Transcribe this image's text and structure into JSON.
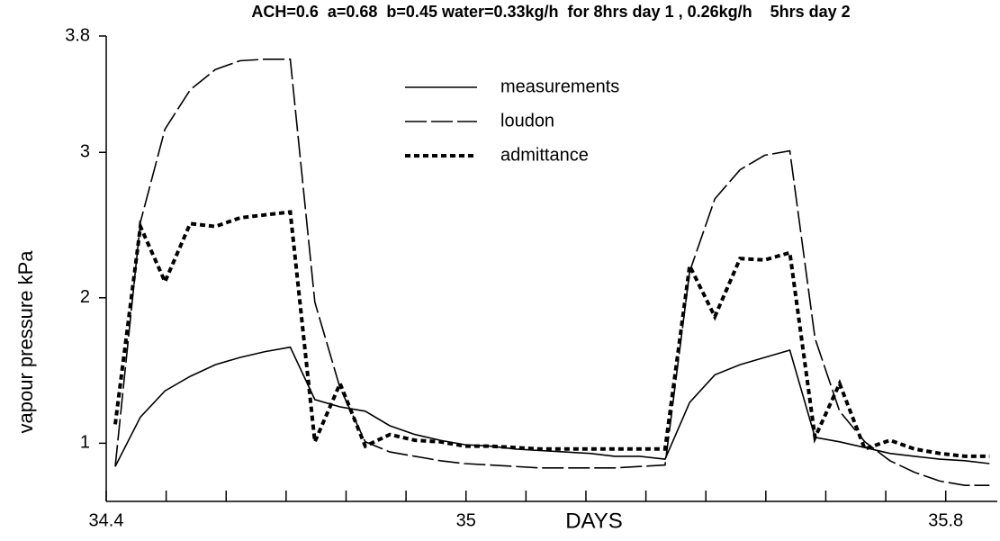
{
  "chart_data": {
    "type": "line",
    "title": "ACH=0.6  a=0.68  b=0.45 water=0.33kg/h  for 8hrs day 1 , 0.26kg/h    5hrs day 2",
    "xlabel": "DAYS",
    "ylabel": "vapour pressure kPa",
    "xlim": [
      34.4,
      35.886
    ],
    "ylim": [
      0.6,
      3.8
    ],
    "xticks": [
      34.4,
      35,
      35.8
    ],
    "xminorticks": [
      34.5,
      34.6,
      34.7,
      34.8,
      34.9,
      35.1,
      35.2,
      35.3,
      35.4,
      35.5,
      35.6,
      35.7
    ],
    "yticks": [
      1,
      2,
      3,
      3.8
    ],
    "grid": false,
    "legend": "top-center",
    "x": [
      34.415,
      34.457,
      34.498,
      34.54,
      34.582,
      34.623,
      34.665,
      34.707,
      34.748,
      34.79,
      34.832,
      34.873,
      34.915,
      34.957,
      34.998,
      35.04,
      35.082,
      35.123,
      35.165,
      35.207,
      35.248,
      35.29,
      35.332,
      35.373,
      35.415,
      35.457,
      35.498,
      35.54,
      35.582,
      35.623,
      35.665,
      35.707,
      35.748,
      35.79,
      35.832,
      35.873
    ],
    "series": [
      {
        "name": "measurements",
        "color": "#000000",
        "line_style": "solid",
        "values": [
          0.84,
          1.18,
          1.36,
          1.46,
          1.54,
          1.59,
          1.63,
          1.66,
          1.3,
          1.25,
          1.22,
          1.12,
          1.06,
          1.02,
          0.99,
          0.98,
          0.96,
          0.95,
          0.94,
          0.93,
          0.91,
          0.91,
          0.89,
          1.28,
          1.47,
          1.54,
          1.59,
          1.64,
          1.04,
          1.01,
          0.97,
          0.93,
          0.91,
          0.89,
          0.88,
          0.86
        ]
      },
      {
        "name": "loudon",
        "color": "#000000",
        "line_style": "dashed",
        "values": [
          0.84,
          2.52,
          3.16,
          3.43,
          3.57,
          3.63,
          3.64,
          3.64,
          1.97,
          1.38,
          1.01,
          0.94,
          0.91,
          0.88,
          0.86,
          0.85,
          0.84,
          0.83,
          0.83,
          0.83,
          0.83,
          0.84,
          0.85,
          2.18,
          2.68,
          2.88,
          2.98,
          3.01,
          1.72,
          1.22,
          1.01,
          0.88,
          0.8,
          0.74,
          0.71,
          0.71
        ]
      },
      {
        "name": "admittance",
        "color": "#000000",
        "line_style": "dotted",
        "values": [
          1.13,
          2.49,
          2.11,
          2.51,
          2.49,
          2.55,
          2.57,
          2.59,
          1.01,
          1.41,
          0.98,
          1.06,
          1.02,
          1.01,
          0.98,
          0.98,
          0.97,
          0.96,
          0.96,
          0.96,
          0.96,
          0.96,
          0.96,
          2.22,
          1.87,
          2.27,
          2.26,
          2.31,
          1.04,
          1.41,
          0.96,
          1.02,
          0.96,
          0.93,
          0.91,
          0.91
        ]
      }
    ]
  }
}
